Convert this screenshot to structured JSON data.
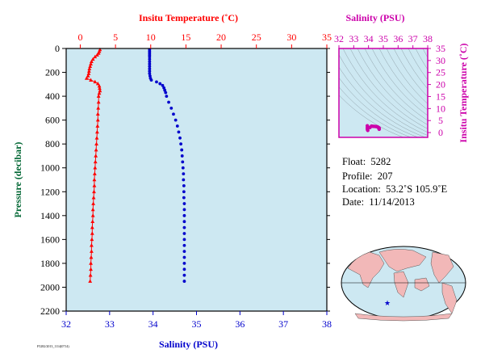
{
  "colors": {
    "temperature": "#ff0000",
    "salinity": "#0000cc",
    "pressure_axis": "#000000",
    "ts_axis": "#cc00aa",
    "plot_bg": "#cde8f2",
    "ocean": "#cde8f2",
    "land": "#f2b8b8"
  },
  "float_info": {
    "float_label": "Float:",
    "float_value": "5282",
    "profile_label": "Profile:",
    "profile_value": "207",
    "location_label": "Location:",
    "location_value": "53.2˚S  105.9˚E",
    "date_label": "Date:",
    "date_value": "11/14/2013"
  },
  "footer_text": "F5282/2013_1114(0714)",
  "chart_data": [
    {
      "type": "line",
      "name": "profile",
      "title_top": "Insitu Temperature (˚C)",
      "xlabel_bottom": "Salinity (PSU)",
      "ylabel": "Pressure (decibar)",
      "ylim": [
        2200,
        0
      ],
      "y_ticks": [
        0,
        200,
        400,
        600,
        800,
        1000,
        1200,
        1400,
        1600,
        1800,
        2000,
        2200
      ],
      "x_top_lim": [
        -2,
        35
      ],
      "x_top_ticks": [
        0,
        5,
        10,
        15,
        20,
        25,
        30,
        35
      ],
      "x_bottom_lim": [
        32,
        38
      ],
      "x_bottom_ticks": [
        32,
        33,
        34,
        35,
        36,
        37,
        38
      ],
      "grid": false,
      "series": [
        {
          "axis": "top",
          "marker": "triangle",
          "points": [
            [
              2.8,
              10
            ],
            [
              2.7,
              25
            ],
            [
              2.6,
              40
            ],
            [
              2.4,
              55
            ],
            [
              2.1,
              70
            ],
            [
              1.8,
              90
            ],
            [
              1.6,
              110
            ],
            [
              1.5,
              130
            ],
            [
              1.4,
              150
            ],
            [
              1.3,
              170
            ],
            [
              1.25,
              190
            ],
            [
              1.2,
              210
            ],
            [
              1.1,
              230
            ],
            [
              0.9,
              250
            ],
            [
              1.5,
              265
            ],
            [
              2.1,
              280
            ],
            [
              2.5,
              295
            ],
            [
              2.7,
              315
            ],
            [
              2.75,
              335
            ],
            [
              2.8,
              355
            ],
            [
              2.7,
              375
            ],
            [
              2.6,
              400
            ],
            [
              2.6,
              450
            ],
            [
              2.55,
              500
            ],
            [
              2.5,
              550
            ],
            [
              2.5,
              600
            ],
            [
              2.45,
              650
            ],
            [
              2.4,
              700
            ],
            [
              2.35,
              750
            ],
            [
              2.3,
              800
            ],
            [
              2.25,
              850
            ],
            [
              2.2,
              900
            ],
            [
              2.15,
              950
            ],
            [
              2.1,
              1000
            ],
            [
              2.05,
              1050
            ],
            [
              2.0,
              1100
            ],
            [
              2.0,
              1150
            ],
            [
              1.95,
              1200
            ],
            [
              1.9,
              1250
            ],
            [
              1.85,
              1300
            ],
            [
              1.8,
              1350
            ],
            [
              1.8,
              1400
            ],
            [
              1.75,
              1450
            ],
            [
              1.7,
              1500
            ],
            [
              1.7,
              1550
            ],
            [
              1.65,
              1600
            ],
            [
              1.6,
              1650
            ],
            [
              1.6,
              1700
            ],
            [
              1.55,
              1750
            ],
            [
              1.5,
              1800
            ],
            [
              1.5,
              1850
            ],
            [
              1.45,
              1900
            ],
            [
              1.4,
              1950
            ]
          ]
        },
        {
          "axis": "bottom",
          "marker": "dot",
          "points": [
            [
              33.92,
              10
            ],
            [
              33.92,
              25
            ],
            [
              33.92,
              40
            ],
            [
              33.92,
              55
            ],
            [
              33.92,
              70
            ],
            [
              33.92,
              90
            ],
            [
              33.92,
              110
            ],
            [
              33.92,
              130
            ],
            [
              33.92,
              150
            ],
            [
              33.92,
              170
            ],
            [
              33.92,
              190
            ],
            [
              33.92,
              210
            ],
            [
              33.93,
              230
            ],
            [
              33.94,
              250
            ],
            [
              33.96,
              265
            ],
            [
              34.08,
              280
            ],
            [
              34.16,
              295
            ],
            [
              34.22,
              310
            ],
            [
              34.25,
              330
            ],
            [
              34.27,
              350
            ],
            [
              34.29,
              370
            ],
            [
              34.31,
              400
            ],
            [
              34.36,
              450
            ],
            [
              34.42,
              500
            ],
            [
              34.47,
              550
            ],
            [
              34.52,
              600
            ],
            [
              34.56,
              650
            ],
            [
              34.59,
              700
            ],
            [
              34.62,
              750
            ],
            [
              34.64,
              800
            ],
            [
              34.66,
              850
            ],
            [
              34.67,
              900
            ],
            [
              34.68,
              950
            ],
            [
              34.69,
              1000
            ],
            [
              34.7,
              1050
            ],
            [
              34.7,
              1100
            ],
            [
              34.71,
              1150
            ],
            [
              34.71,
              1200
            ],
            [
              34.71,
              1250
            ],
            [
              34.72,
              1300
            ],
            [
              34.72,
              1350
            ],
            [
              34.72,
              1400
            ],
            [
              34.72,
              1450
            ],
            [
              34.72,
              1500
            ],
            [
              34.72,
              1550
            ],
            [
              34.72,
              1600
            ],
            [
              34.72,
              1650
            ],
            [
              34.72,
              1700
            ],
            [
              34.72,
              1750
            ],
            [
              34.72,
              1800
            ],
            [
              34.72,
              1850
            ],
            [
              34.72,
              1900
            ],
            [
              34.72,
              1950
            ]
          ]
        }
      ]
    },
    {
      "type": "scatter",
      "name": "ts_diagram",
      "title": "Salinity (PSU)",
      "ylabel": "Insitu Temperature (˚C)",
      "xlim": [
        32,
        38
      ],
      "x_ticks": [
        32,
        33,
        34,
        35,
        36,
        37,
        38
      ],
      "ylim": [
        -2,
        35
      ],
      "y_ticks": [
        0,
        5,
        10,
        15,
        20,
        25,
        30,
        35
      ],
      "points": [
        [
          33.92,
          2.8
        ],
        [
          33.92,
          2.0
        ],
        [
          33.93,
          1.5
        ],
        [
          33.93,
          1.2
        ],
        [
          33.95,
          0.9
        ],
        [
          34.1,
          2.1
        ],
        [
          34.2,
          2.7
        ],
        [
          34.3,
          2.6
        ],
        [
          34.4,
          2.55
        ],
        [
          34.5,
          2.5
        ],
        [
          34.6,
          2.4
        ],
        [
          34.65,
          2.2
        ],
        [
          34.7,
          2.0
        ],
        [
          34.72,
          1.8
        ],
        [
          34.72,
          1.6
        ],
        [
          34.72,
          1.4
        ]
      ]
    }
  ]
}
